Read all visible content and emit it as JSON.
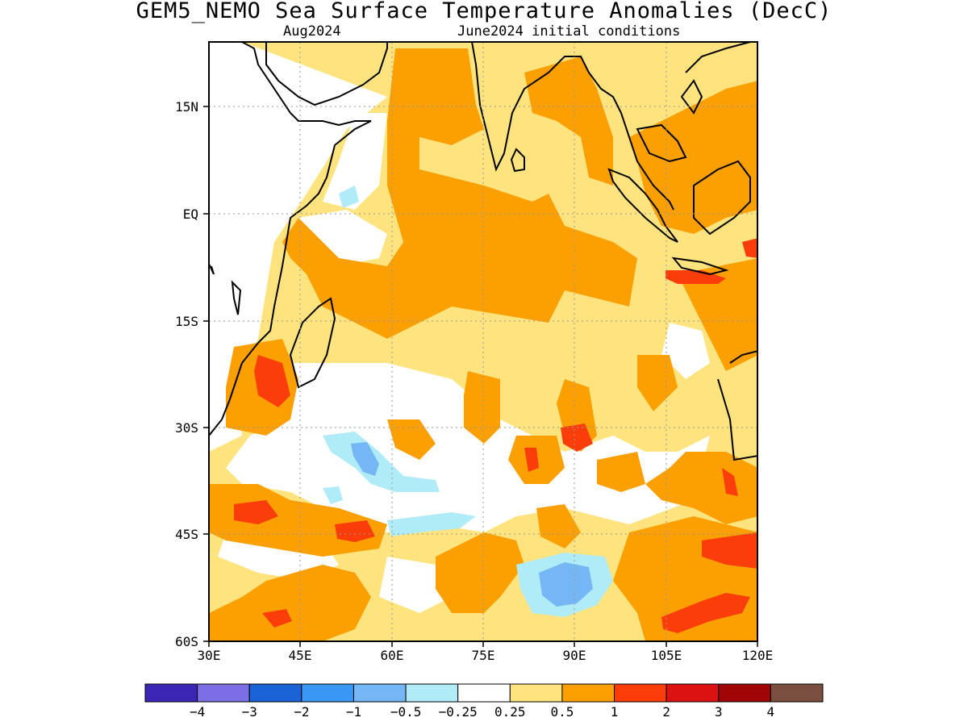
{
  "title": "GEM5_NEMO Sea Surface Temperature Anomalies (DecC)",
  "subtitle_left": "Aug2024",
  "subtitle_right": "June2024 initial conditions",
  "map": {
    "lon_range": [
      30,
      120
    ],
    "lat_range": [
      -60,
      24
    ],
    "x_ticks": [
      "30E",
      "45E",
      "60E",
      "75E",
      "90E",
      "105E",
      "120E"
    ],
    "y_ticks": [
      "15N",
      "EQ",
      "15S",
      "30S",
      "45S",
      "60S"
    ]
  },
  "colorbar": {
    "colors": [
      "#3b25b4",
      "#7c6fe6",
      "#1a63d6",
      "#3b97f5",
      "#75b7f5",
      "#b0ecf7",
      "#ffffff",
      "#fee37e",
      "#fba000",
      "#fb3d0a",
      "#dc1111",
      "#a00505",
      "#7a4f40"
    ],
    "labels": [
      "−4",
      "−3",
      "−2",
      "−1",
      "−0.5",
      "−0.25",
      "0.25",
      "0.5",
      "1",
      "2",
      "3",
      "4"
    ]
  }
}
